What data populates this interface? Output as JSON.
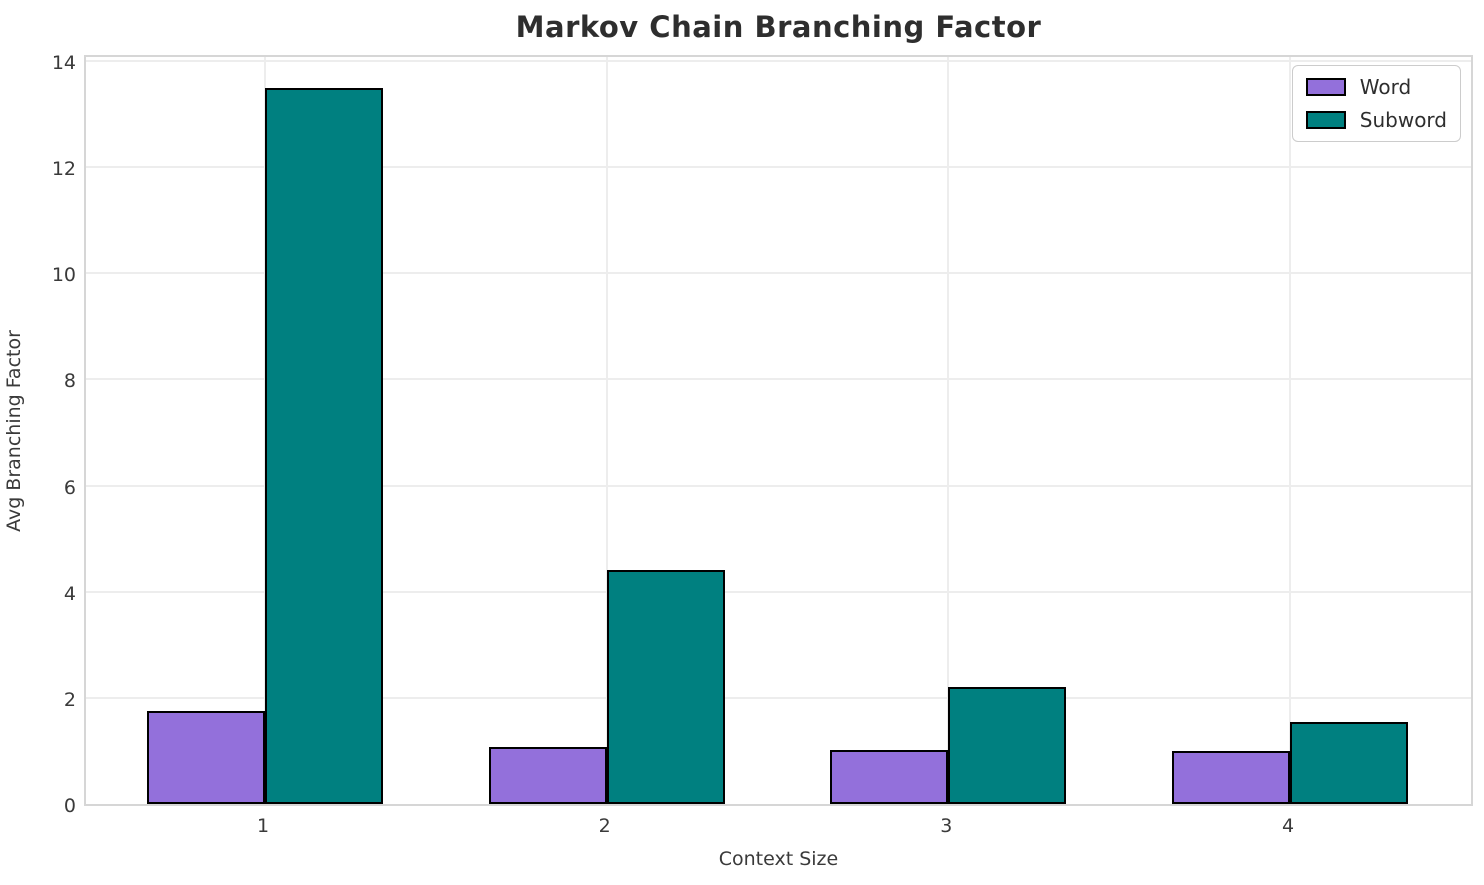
{
  "chart_data": {
    "type": "bar",
    "title": "Markov Chain Branching Factor",
    "xlabel": "Context Size",
    "ylabel": "Avg Branching Factor",
    "categories": [
      "1",
      "2",
      "3",
      "4"
    ],
    "series": [
      {
        "name": "Word",
        "color": "#9370DB",
        "values": [
          1.75,
          1.07,
          1.01,
          1.0
        ]
      },
      {
        "name": "Subword",
        "color": "#008080",
        "values": [
          13.5,
          4.4,
          2.2,
          1.55
        ]
      }
    ],
    "ylim": [
      0,
      14.15
    ],
    "yticks": [
      0,
      2,
      4,
      6,
      8,
      10,
      12,
      14
    ],
    "grid": true,
    "legend_position": "upper right",
    "bar_edge_color": "#000000",
    "grid_color": "#ededed",
    "spine_color": "#d6d6d6",
    "text_color": "#3a3a3a",
    "title_color": "#2e2e2e"
  }
}
